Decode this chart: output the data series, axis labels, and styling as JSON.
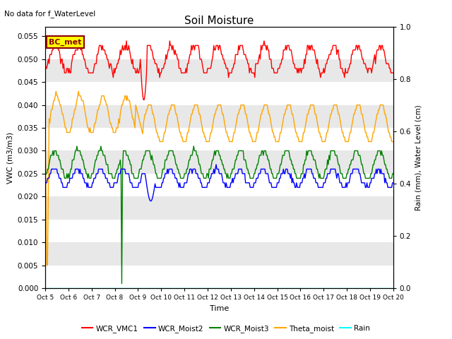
{
  "title": "Soil Moisture",
  "subtitle": "No data for f_WaterLevel",
  "xlabel": "Time",
  "ylabel_left": "VWC (m3/m3)",
  "ylabel_right": "Rain (mm), Water Level (cm)",
  "ylim_left": [
    0.0,
    0.057
  ],
  "ylim_right": [
    0.0,
    1.0
  ],
  "yticks_left": [
    0.0,
    0.005,
    0.01,
    0.015,
    0.02,
    0.025,
    0.03,
    0.035,
    0.04,
    0.045,
    0.05,
    0.055
  ],
  "yticks_right": [
    0.0,
    0.2,
    0.4,
    0.6,
    0.8,
    1.0
  ],
  "x_labels": [
    "Oct 5",
    "Oct 6",
    "Oct 7",
    "Oct 8",
    "Oct 9",
    "Oct 10",
    "Oct 11",
    "Oct 12",
    "Oct 13",
    "Oct 14",
    "Oct 15",
    "Oct 16",
    "Oct 17",
    "Oct 18",
    "Oct 19",
    "Oct 20"
  ],
  "bc_met_label": "BC_met",
  "legend_entries": [
    "WCR_VMC1",
    "WCR_Moist2",
    "WCR_Moist3",
    "Theta_moist",
    "Rain"
  ],
  "legend_colors": [
    "red",
    "blue",
    "green",
    "orange",
    "cyan"
  ],
  "stripe_color": "#e8e8e8",
  "colors": {
    "WCR_VMC1": "red",
    "WCR_Moist2": "blue",
    "WCR_Moist3": "green",
    "Theta_moist": "orange",
    "Rain": "cyan"
  }
}
